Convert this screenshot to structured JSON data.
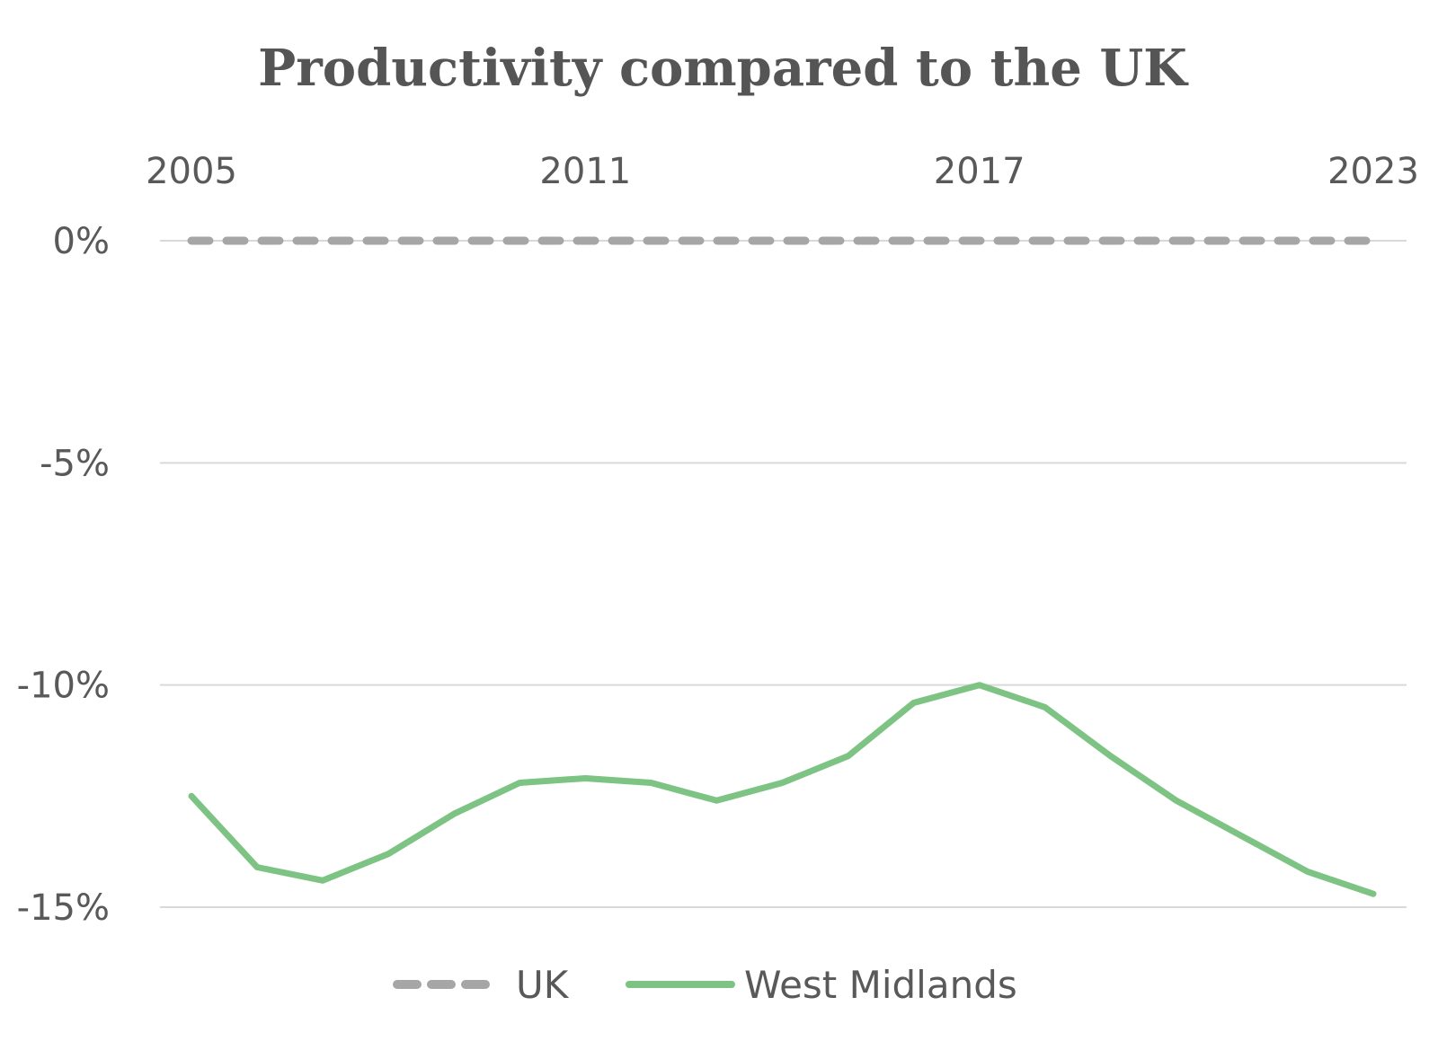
{
  "chart_data": {
    "type": "line",
    "title": "Productivity compared to the UK",
    "x": [
      2005,
      2006,
      2007,
      2008,
      2009,
      2010,
      2011,
      2012,
      2013,
      2014,
      2015,
      2016,
      2017,
      2018,
      2019,
      2020,
      2021,
      2022,
      2023
    ],
    "x_tick_labels": [
      "2005",
      "2011",
      "2017",
      "2023"
    ],
    "x_tick_values": [
      2005,
      2011,
      2017,
      2023
    ],
    "x_axis_position": "top",
    "y_tick_values": [
      0,
      -5,
      -10,
      -15
    ],
    "y_tick_labels": [
      "0%",
      "-5%",
      "-10%",
      "-15%"
    ],
    "ylim": [
      -15,
      0
    ],
    "grid": true,
    "legend_position": "bottom",
    "series": [
      {
        "name": "UK",
        "color": "#a6a6a6",
        "style": "dashed",
        "values": [
          0,
          0,
          0,
          0,
          0,
          0,
          0,
          0,
          0,
          0,
          0,
          0,
          0,
          0,
          0,
          0,
          0,
          0,
          0
        ]
      },
      {
        "name": "West Midlands",
        "color": "#7dc383",
        "style": "solid",
        "values": [
          -12.5,
          -14.1,
          -14.4,
          -13.8,
          -12.9,
          -12.2,
          -12.1,
          -12.2,
          -12.6,
          -12.2,
          -11.6,
          -10.4,
          -10.0,
          -10.5,
          -11.6,
          -12.6,
          -13.4,
          -14.2,
          -14.7
        ]
      }
    ]
  }
}
